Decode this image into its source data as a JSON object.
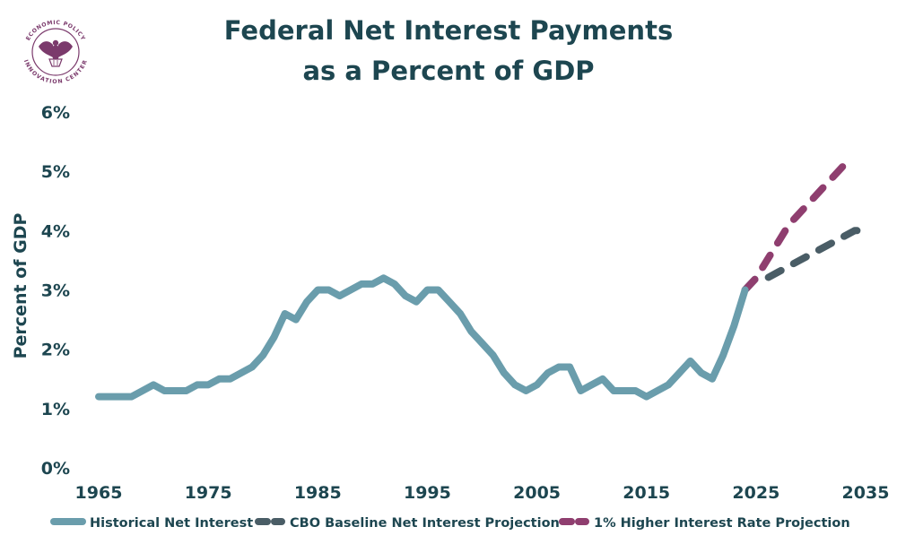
{
  "logo": {
    "org_name": "ECONOMIC POLICY INNOVATION CENTER",
    "top_arc": "ECONOMIC POLICY",
    "bottom_arc": "INNOVATION CENTER",
    "color": "#7b3a6c"
  },
  "chart_data": {
    "type": "line",
    "title_lines": [
      "Federal Net Interest Payments",
      "as a Percent of GDP"
    ],
    "xlabel": "",
    "ylabel": "Percent of GDP",
    "xlim": [
      1965,
      2035
    ],
    "ylim": [
      0,
      6
    ],
    "x_ticks": [
      1965,
      1975,
      1985,
      1995,
      2005,
      2015,
      2025,
      2035
    ],
    "y_ticks": [
      0,
      1,
      2,
      3,
      4,
      5,
      6
    ],
    "y_tick_labels": [
      "0%",
      "1%",
      "2%",
      "3%",
      "4%",
      "5%",
      "6%"
    ],
    "grid": false,
    "legend_position": "bottom",
    "series": [
      {
        "name": "Historical Net Interest",
        "color": "#6a9dac",
        "style": "solid",
        "x": [
          1965,
          1966,
          1967,
          1968,
          1969,
          1970,
          1971,
          1972,
          1973,
          1974,
          1975,
          1976,
          1977,
          1978,
          1979,
          1980,
          1981,
          1982,
          1983,
          1984,
          1985,
          1986,
          1987,
          1988,
          1989,
          1990,
          1991,
          1992,
          1993,
          1994,
          1995,
          1996,
          1997,
          1998,
          1999,
          2000,
          2001,
          2002,
          2003,
          2004,
          2005,
          2006,
          2007,
          2008,
          2009,
          2010,
          2011,
          2012,
          2013,
          2014,
          2015,
          2016,
          2017,
          2018,
          2019,
          2020,
          2021,
          2022,
          2023,
          2024
        ],
        "values": [
          1.2,
          1.2,
          1.2,
          1.2,
          1.3,
          1.4,
          1.3,
          1.3,
          1.3,
          1.4,
          1.4,
          1.5,
          1.5,
          1.6,
          1.7,
          1.9,
          2.2,
          2.6,
          2.5,
          2.8,
          3.0,
          3.0,
          2.9,
          3.0,
          3.1,
          3.1,
          3.2,
          3.1,
          2.9,
          2.8,
          3.0,
          3.0,
          2.8,
          2.6,
          2.3,
          2.1,
          1.9,
          1.6,
          1.4,
          1.3,
          1.4,
          1.6,
          1.7,
          1.7,
          1.3,
          1.4,
          1.5,
          1.3,
          1.3,
          1.3,
          1.2,
          1.3,
          1.4,
          1.6,
          1.8,
          1.6,
          1.5,
          1.9,
          2.4,
          3.0
        ]
      },
      {
        "name": "CBO Baseline Net Interest Projection",
        "color": "#4a5d66",
        "style": "dashed",
        "x": [
          2024,
          2025,
          2026,
          2027,
          2028,
          2029,
          2030,
          2031,
          2032,
          2033,
          2034,
          2035
        ],
        "values": [
          3.0,
          3.2,
          3.2,
          3.3,
          3.4,
          3.5,
          3.6,
          3.7,
          3.8,
          3.9,
          4.0,
          4.0
        ]
      },
      {
        "name": "1% Higher Interest Rate Projection",
        "color": "#8f3e6f",
        "style": "dashed",
        "x": [
          2024,
          2025,
          2026,
          2027,
          2028,
          2029,
          2030,
          2031,
          2032,
          2033,
          2034
        ],
        "values": [
          3.0,
          3.2,
          3.5,
          3.8,
          4.1,
          4.3,
          4.5,
          4.7,
          4.9,
          5.1,
          5.2
        ]
      }
    ]
  }
}
